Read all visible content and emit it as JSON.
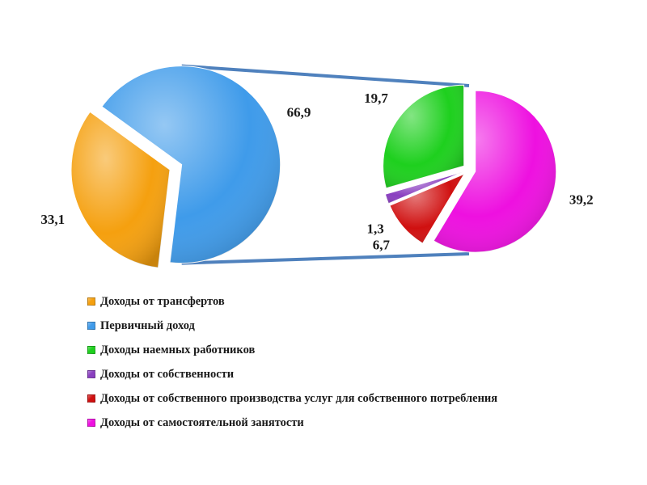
{
  "chart_data": {
    "type": "pie",
    "subtype": "pie-of-pie",
    "primary": {
      "slices": [
        {
          "label": "Доходы от трансфертов",
          "value": "33,1",
          "color": "#F5A00F",
          "key": "transfers"
        },
        {
          "label": "Первичный доход",
          "value": "66,9",
          "color": "#3F9BEA",
          "key": "primary-income",
          "exploded": true
        }
      ]
    },
    "secondary": {
      "expands": "Первичный доход",
      "slices": [
        {
          "label": "Доходы наемных работников",
          "value": "19,7",
          "color": "#1ED01E",
          "key": "wages"
        },
        {
          "label": "Доходы от собственности",
          "value": "1,3",
          "color": "#8A3FC0",
          "key": "property"
        },
        {
          "label": "Доходы от собственного производства услуг для собственного потребления",
          "value": "6,7",
          "color": "#D01010",
          "key": "own-production"
        },
        {
          "label": "Доходы от самостоятельной занятости",
          "value": "39,2",
          "color": "#EE10E0",
          "key": "self-employment"
        }
      ]
    },
    "legend": {
      "position": "bottom-left",
      "entries": [
        {
          "label": "Доходы от трансфертов",
          "color": "#F5A00F",
          "key": "transfers"
        },
        {
          "label": "Первичный доход",
          "color": "#3F9BEA",
          "key": "primary-income"
        },
        {
          "label": "Доходы наемных работников",
          "color": "#1ED01E",
          "key": "wages"
        },
        {
          "label": "Доходы от собственности",
          "color": "#8A3FC0",
          "key": "property"
        },
        {
          "label": "Доходы от собственного производства услуг для собственного потребления",
          "color": "#D01010",
          "key": "own-production"
        },
        {
          "label": "Доходы от самостоятельной занятости",
          "color": "#EE10E0",
          "key": "self-employment"
        }
      ]
    },
    "connector_color": "#4F81BD"
  }
}
